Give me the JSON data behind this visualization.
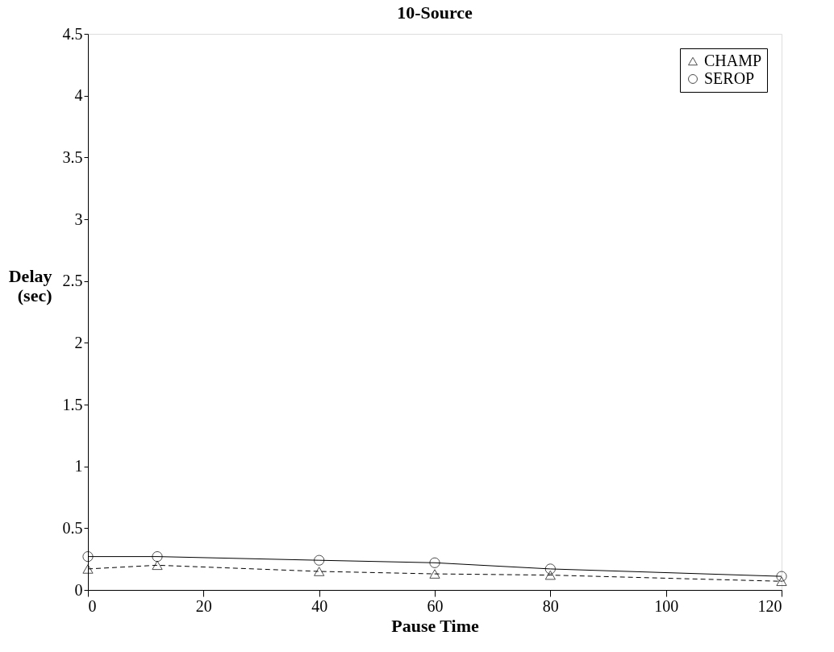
{
  "chart_data": {
    "type": "line",
    "title": "10-Source",
    "xlabel": "Pause Time",
    "ylabel": "Delay (sec)",
    "x": [
      0,
      12,
      40,
      60,
      80,
      120
    ],
    "series": [
      {
        "name": "CHAMP",
        "color": "#000000",
        "marker": "triangle",
        "line_style": "dashed",
        "values": [
          0.17,
          0.2,
          0.15,
          0.13,
          0.12,
          0.07
        ]
      },
      {
        "name": "SEROP",
        "color": "#000000",
        "marker": "circle",
        "line_style": "solid",
        "values": [
          0.27,
          0.27,
          0.24,
          0.22,
          0.17,
          0.11
        ]
      }
    ],
    "xlim": [
      0,
      120
    ],
    "xticks": [
      0,
      20,
      40,
      60,
      80,
      100,
      120
    ],
    "ylim": [
      0,
      4.5
    ],
    "yticks": [
      0,
      0.5,
      1,
      1.5,
      2,
      2.5,
      3,
      3.5,
      4,
      4.5
    ],
    "grid": false,
    "legend": "top right"
  }
}
